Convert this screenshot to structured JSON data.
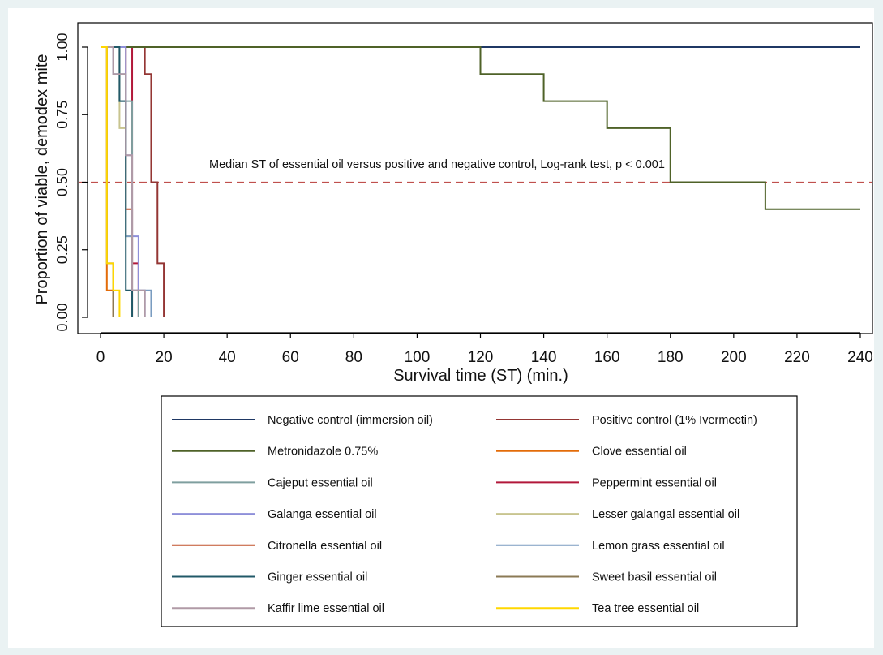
{
  "chart_data": {
    "type": "line",
    "subtype": "kaplan-meier step",
    "title": "",
    "xlabel": "Survival time (ST) (min.)",
    "ylabel": "Proportion of viable, demodex mite",
    "xlim": [
      0,
      240
    ],
    "ylim": [
      0,
      1
    ],
    "x_ticks": [
      0,
      20,
      40,
      60,
      80,
      100,
      120,
      140,
      160,
      180,
      200,
      220,
      240
    ],
    "y_ticks": [
      0,
      0.25,
      0.5,
      0.75,
      1
    ],
    "y_tick_labels": [
      "0.00",
      "0.25",
      "0.50",
      "0.75",
      "1.00"
    ],
    "grid": false,
    "legend_position": "bottom",
    "reference_line": {
      "y": 0.5,
      "style": "dashed",
      "color": "#c0504d"
    },
    "annotation": "Median ST of essential oil versus positive and negative control, Log-rank test, p < 0.001",
    "series": [
      {
        "name": "Negative control (immersion oil)",
        "color": "#1f3864",
        "points": [
          [
            0,
            1
          ],
          [
            240,
            1
          ]
        ]
      },
      {
        "name": "Positive control (1% Ivermectin)",
        "color": "#943634",
        "points": [
          [
            0,
            1
          ],
          [
            14,
            1
          ],
          [
            14,
            0.9
          ],
          [
            16,
            0.9
          ],
          [
            16,
            0.5
          ],
          [
            18,
            0.5
          ],
          [
            18,
            0.2
          ],
          [
            20,
            0.2
          ],
          [
            20,
            0
          ]
        ]
      },
      {
        "name": "Metronidazole 0.75%",
        "color": "#4f6228",
        "points": [
          [
            0,
            1
          ],
          [
            120,
            1
          ],
          [
            120,
            0.9
          ],
          [
            140,
            0.9
          ],
          [
            140,
            0.8
          ],
          [
            160,
            0.8
          ],
          [
            160,
            0.7
          ],
          [
            180,
            0.7
          ],
          [
            180,
            0.5
          ],
          [
            210,
            0.5
          ],
          [
            210,
            0.4
          ],
          [
            240,
            0.4
          ]
        ]
      },
      {
        "name": "Clove essential oil",
        "color": "#e36c09",
        "points": [
          [
            0,
            1
          ],
          [
            2,
            1
          ],
          [
            2,
            0.1
          ],
          [
            4,
            0.1
          ],
          [
            4,
            0
          ]
        ]
      },
      {
        "name": "Cajeput essential oil",
        "color": "#7f9f9f",
        "points": [
          [
            0,
            1
          ],
          [
            6,
            1
          ],
          [
            6,
            0.8
          ],
          [
            10,
            0.8
          ],
          [
            10,
            0.1
          ],
          [
            12,
            0.1
          ],
          [
            12,
            0
          ]
        ]
      },
      {
        "name": "Peppermint essential oil",
        "color": "#b2183a",
        "points": [
          [
            0,
            1
          ],
          [
            10,
            1
          ],
          [
            10,
            0.2
          ],
          [
            12,
            0.2
          ],
          [
            12,
            0
          ]
        ]
      },
      {
        "name": "Galanga essential oil",
        "color": "#8e8fd9",
        "points": [
          [
            0,
            1
          ],
          [
            8,
            1
          ],
          [
            8,
            0.6
          ],
          [
            10,
            0.6
          ],
          [
            10,
            0.3
          ],
          [
            12,
            0.3
          ],
          [
            12,
            0.1
          ],
          [
            14,
            0.1
          ],
          [
            14,
            0
          ]
        ]
      },
      {
        "name": "Lesser galangal essential oil",
        "color": "#c8c48f",
        "points": [
          [
            0,
            1
          ],
          [
            6,
            1
          ],
          [
            6,
            0.7
          ],
          [
            8,
            0.7
          ],
          [
            8,
            0.3
          ],
          [
            10,
            0.3
          ],
          [
            10,
            0
          ]
        ]
      },
      {
        "name": "Citronella essential oil",
        "color": "#c0502a",
        "points": [
          [
            0,
            1
          ],
          [
            8,
            1
          ],
          [
            8,
            0.4
          ],
          [
            10,
            0.4
          ],
          [
            10,
            0
          ]
        ]
      },
      {
        "name": "Lemon grass essential oil",
        "color": "#7a9cc0",
        "points": [
          [
            0,
            1
          ],
          [
            4,
            1
          ],
          [
            4,
            0.9
          ],
          [
            8,
            0.9
          ],
          [
            8,
            0.3
          ],
          [
            10,
            0.3
          ],
          [
            10,
            0.1
          ],
          [
            16,
            0.1
          ],
          [
            16,
            0
          ]
        ]
      },
      {
        "name": "Ginger essential oil",
        "color": "#215968",
        "points": [
          [
            0,
            1
          ],
          [
            6,
            1
          ],
          [
            6,
            0.8
          ],
          [
            8,
            0.8
          ],
          [
            8,
            0.1
          ],
          [
            10,
            0.1
          ],
          [
            10,
            0
          ]
        ]
      },
      {
        "name": "Sweet basil essential oil",
        "color": "#8b7a55",
        "points": [
          [
            0,
            1
          ],
          [
            2,
            1
          ],
          [
            2,
            0.2
          ],
          [
            4,
            0.2
          ],
          [
            4,
            0
          ]
        ]
      },
      {
        "name": "Kaffir lime essential oil",
        "color": "#b09aa6",
        "points": [
          [
            0,
            1
          ],
          [
            4,
            1
          ],
          [
            4,
            0.9
          ],
          [
            8,
            0.9
          ],
          [
            8,
            0.6
          ],
          [
            10,
            0.6
          ],
          [
            10,
            0.1
          ],
          [
            14,
            0.1
          ],
          [
            14,
            0
          ]
        ]
      },
      {
        "name": "Tea tree essential oil",
        "color": "#ffd700",
        "points": [
          [
            0,
            1
          ],
          [
            2,
            1
          ],
          [
            2,
            0.2
          ],
          [
            4,
            0.2
          ],
          [
            4,
            0.1
          ],
          [
            6,
            0.1
          ],
          [
            6,
            0
          ]
        ]
      }
    ]
  }
}
